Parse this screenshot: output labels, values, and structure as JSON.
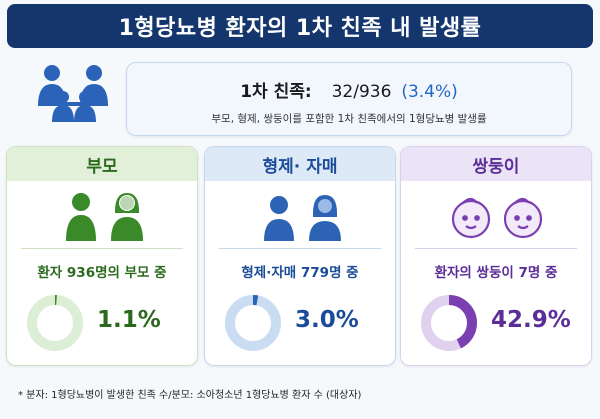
{
  "title": "1형당뇨병 환자의 1차 친족 내 발생률",
  "summary": {
    "label": "1차 친족:",
    "value": "32/936",
    "percent": "(3.4%)",
    "description": "부모, 형제, 쌍둥이를 포함한 1차 친족에서의 1형당뇨병 발생률"
  },
  "cards": [
    {
      "heading": "부모",
      "description": "환자 936명의 부모 중",
      "percent_label": "1.1%",
      "percent_value": 1.1,
      "icon": "parents-icon",
      "colors": {
        "accent": "#3a8a2a",
        "track": "#dcefd6"
      }
    },
    {
      "heading": "형제· 자매",
      "description": "형제·자매 779명 중",
      "percent_label": "3.0%",
      "percent_value": 3.0,
      "icon": "siblings-icon",
      "colors": {
        "accent": "#2c63b5",
        "track": "#c9dcf2"
      }
    },
    {
      "heading": "쌍둥이",
      "description": "환자의 쌍둥이 7명 중",
      "percent_label": "42.9%",
      "percent_value": 42.9,
      "icon": "twin-babies-icon",
      "colors": {
        "accent": "#7a3fb0",
        "track": "#e0d2ef"
      }
    }
  ],
  "footnote": "* 분자: 1형당뇨병이 발생한 친족 수/분모: 소아청소년 1형당뇨병 환자 수 (대상자)",
  "header_icon": "family-icon"
}
